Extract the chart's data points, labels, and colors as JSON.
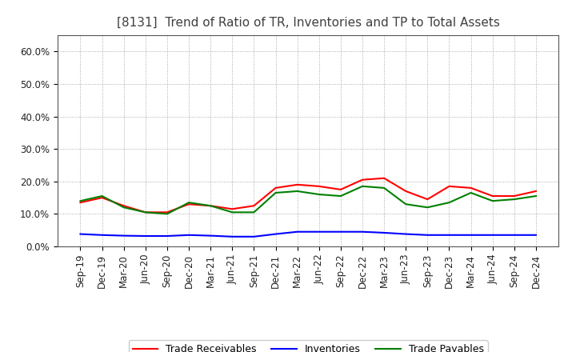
{
  "title": "[8131]  Trend of Ratio of TR, Inventories and TP to Total Assets",
  "x_labels": [
    "Sep-19",
    "Dec-19",
    "Mar-20",
    "Jun-20",
    "Sep-20",
    "Dec-20",
    "Mar-21",
    "Jun-21",
    "Sep-21",
    "Dec-21",
    "Mar-22",
    "Jun-22",
    "Sep-22",
    "Dec-22",
    "Mar-23",
    "Jun-23",
    "Sep-23",
    "Dec-23",
    "Mar-24",
    "Jun-24",
    "Sep-24",
    "Dec-24"
  ],
  "trade_receivables": [
    13.5,
    15.0,
    12.5,
    10.5,
    10.5,
    13.0,
    12.5,
    11.5,
    12.5,
    18.0,
    19.0,
    18.5,
    17.5,
    20.5,
    21.0,
    17.0,
    14.5,
    18.5,
    18.0,
    15.5,
    15.5,
    17.0
  ],
  "inventories": [
    3.8,
    3.5,
    3.3,
    3.2,
    3.2,
    3.5,
    3.3,
    3.0,
    3.0,
    3.8,
    4.5,
    4.5,
    4.5,
    4.5,
    4.2,
    3.8,
    3.5,
    3.5,
    3.5,
    3.5,
    3.5,
    3.5
  ],
  "trade_payables": [
    14.0,
    15.5,
    12.0,
    10.5,
    10.0,
    13.5,
    12.5,
    10.5,
    10.5,
    16.5,
    17.0,
    16.0,
    15.5,
    18.5,
    18.0,
    13.0,
    12.0,
    13.5,
    16.5,
    14.0,
    14.5,
    15.5
  ],
  "ylim": [
    0,
    65
  ],
  "yticks": [
    0,
    10,
    20,
    30,
    40,
    50,
    60
  ],
  "ytick_labels": [
    "0.0%",
    "10.0%",
    "20.0%",
    "30.0%",
    "40.0%",
    "50.0%",
    "60.0%"
  ],
  "tr_color": "#ff0000",
  "inv_color": "#0000ff",
  "tp_color": "#008000",
  "bg_color": "#ffffff",
  "grid_color": "#999999",
  "title_fontsize": 11,
  "title_color": "#404040",
  "legend_fontsize": 9,
  "axis_fontsize": 8.5
}
